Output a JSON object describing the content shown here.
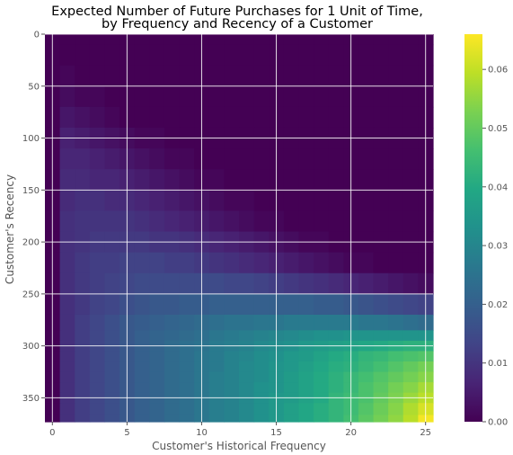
{
  "chart_data": {
    "type": "heatmap",
    "title_lines": [
      "Expected Number of Future Purchases for 1 Unit of Time,",
      "by Frequency and Recency of a Customer"
    ],
    "xlabel": "Customer's Historical Frequency",
    "ylabel": "Customer's Recency",
    "xlim": [
      -0.5,
      25.5
    ],
    "ylim": [
      373,
      0
    ],
    "x_ticks": [
      0,
      5,
      10,
      15,
      20,
      25
    ],
    "y_ticks": [
      0,
      50,
      100,
      150,
      200,
      250,
      300,
      350
    ],
    "x": [
      0,
      1,
      2,
      3,
      4,
      5,
      6,
      7,
      8,
      9,
      10,
      11,
      12,
      13,
      14,
      15,
      16,
      17,
      18,
      19,
      20,
      21,
      22,
      23,
      24,
      25
    ],
    "y": [
      0,
      20,
      40,
      60,
      80,
      100,
      120,
      140,
      160,
      180,
      200,
      220,
      240,
      260,
      280,
      290,
      300,
      310,
      320,
      330,
      340,
      350,
      360,
      373
    ],
    "values": [
      [
        0.0,
        0.0,
        0.0,
        0.0,
        0.0,
        0.0,
        0.0,
        0.0,
        0.0,
        0.0,
        0.0,
        0.0,
        0.0,
        0.0,
        0.0,
        0.0,
        0.0,
        0.0,
        0.0,
        0.0,
        0.0,
        0.0,
        0.0,
        0.0,
        0.0,
        0.0
      ],
      [
        0.0,
        0.0,
        0.0,
        0.0,
        0.0,
        0.0,
        0.0,
        0.0,
        0.0,
        0.0,
        0.0,
        0.0,
        0.0,
        0.0,
        0.0,
        0.0,
        0.0,
        0.0,
        0.0,
        0.0,
        0.0,
        0.0,
        0.0,
        0.0,
        0.0,
        0.0
      ],
      [
        0.0,
        0.001,
        0.0,
        0.0,
        0.0,
        0.0,
        0.0,
        0.0,
        0.0,
        0.0,
        0.0,
        0.0,
        0.0,
        0.0,
        0.0,
        0.0,
        0.0,
        0.0,
        0.0,
        0.0,
        0.0,
        0.0,
        0.0,
        0.0,
        0.0,
        0.0
      ],
      [
        0.0,
        0.002,
        0.001,
        0.001,
        0.0,
        0.0,
        0.0,
        0.0,
        0.0,
        0.0,
        0.0,
        0.0,
        0.0,
        0.0,
        0.0,
        0.0,
        0.0,
        0.0,
        0.0,
        0.0,
        0.0,
        0.0,
        0.0,
        0.0,
        0.0,
        0.0
      ],
      [
        0.0,
        0.004,
        0.003,
        0.002,
        0.001,
        0.0,
        0.0,
        0.0,
        0.0,
        0.0,
        0.0,
        0.0,
        0.0,
        0.0,
        0.0,
        0.0,
        0.0,
        0.0,
        0.0,
        0.0,
        0.0,
        0.0,
        0.0,
        0.0,
        0.0,
        0.0
      ],
      [
        0.0,
        0.006,
        0.005,
        0.004,
        0.003,
        0.002,
        0.001,
        0.001,
        0.0,
        0.0,
        0.0,
        0.0,
        0.0,
        0.0,
        0.0,
        0.0,
        0.0,
        0.0,
        0.0,
        0.0,
        0.0,
        0.0,
        0.0,
        0.0,
        0.0,
        0.0
      ],
      [
        0.0,
        0.007,
        0.007,
        0.006,
        0.005,
        0.004,
        0.003,
        0.002,
        0.001,
        0.001,
        0.0,
        0.0,
        0.0,
        0.0,
        0.0,
        0.0,
        0.0,
        0.0,
        0.0,
        0.0,
        0.0,
        0.0,
        0.0,
        0.0,
        0.0,
        0.0
      ],
      [
        0.0,
        0.008,
        0.008,
        0.007,
        0.007,
        0.006,
        0.005,
        0.004,
        0.003,
        0.002,
        0.001,
        0.001,
        0.0,
        0.0,
        0.0,
        0.0,
        0.0,
        0.0,
        0.0,
        0.0,
        0.0,
        0.0,
        0.0,
        0.0,
        0.0,
        0.0
      ],
      [
        0.0,
        0.008,
        0.009,
        0.009,
        0.008,
        0.008,
        0.007,
        0.006,
        0.005,
        0.004,
        0.003,
        0.002,
        0.001,
        0.001,
        0.0,
        0.0,
        0.0,
        0.0,
        0.0,
        0.0,
        0.0,
        0.0,
        0.0,
        0.0,
        0.0,
        0.0
      ],
      [
        0.0,
        0.009,
        0.01,
        0.01,
        0.01,
        0.01,
        0.009,
        0.008,
        0.007,
        0.006,
        0.005,
        0.004,
        0.003,
        0.002,
        0.001,
        0.001,
        0.0,
        0.0,
        0.0,
        0.0,
        0.0,
        0.0,
        0.0,
        0.0,
        0.0,
        0.0
      ],
      [
        0.0,
        0.009,
        0.01,
        0.011,
        0.011,
        0.011,
        0.011,
        0.01,
        0.01,
        0.009,
        0.008,
        0.007,
        0.006,
        0.005,
        0.004,
        0.003,
        0.002,
        0.001,
        0.001,
        0.0,
        0.0,
        0.0,
        0.0,
        0.0,
        0.0,
        0.0
      ],
      [
        0.0,
        0.009,
        0.011,
        0.012,
        0.012,
        0.013,
        0.013,
        0.013,
        0.012,
        0.012,
        0.011,
        0.01,
        0.009,
        0.008,
        0.007,
        0.006,
        0.005,
        0.004,
        0.003,
        0.002,
        0.001,
        0.001,
        0.0,
        0.0,
        0.0,
        0.0
      ],
      [
        0.0,
        0.009,
        0.011,
        0.012,
        0.013,
        0.014,
        0.015,
        0.015,
        0.015,
        0.015,
        0.015,
        0.015,
        0.014,
        0.014,
        0.013,
        0.012,
        0.011,
        0.01,
        0.009,
        0.008,
        0.007,
        0.006,
        0.005,
        0.004,
        0.003,
        0.002
      ],
      [
        0.0,
        0.009,
        0.011,
        0.013,
        0.014,
        0.016,
        0.017,
        0.018,
        0.018,
        0.019,
        0.019,
        0.02,
        0.02,
        0.02,
        0.02,
        0.02,
        0.02,
        0.02,
        0.019,
        0.019,
        0.018,
        0.017,
        0.016,
        0.015,
        0.014,
        0.013
      ],
      [
        0.0,
        0.009,
        0.012,
        0.014,
        0.016,
        0.018,
        0.019,
        0.02,
        0.021,
        0.022,
        0.023,
        0.024,
        0.025,
        0.025,
        0.026,
        0.026,
        0.027,
        0.027,
        0.027,
        0.027,
        0.027,
        0.026,
        0.026,
        0.025,
        0.024,
        0.023
      ],
      [
        0.0,
        0.009,
        0.012,
        0.014,
        0.016,
        0.018,
        0.02,
        0.021,
        0.022,
        0.023,
        0.024,
        0.026,
        0.027,
        0.028,
        0.029,
        0.03,
        0.031,
        0.032,
        0.033,
        0.033,
        0.034,
        0.034,
        0.034,
        0.034,
        0.034,
        0.034
      ],
      [
        0.0,
        0.009,
        0.012,
        0.014,
        0.016,
        0.018,
        0.02,
        0.021,
        0.023,
        0.024,
        0.025,
        0.027,
        0.028,
        0.029,
        0.031,
        0.032,
        0.033,
        0.035,
        0.036,
        0.037,
        0.038,
        0.039,
        0.04,
        0.041,
        0.042,
        0.042
      ],
      [
        0.0,
        0.009,
        0.012,
        0.014,
        0.016,
        0.018,
        0.02,
        0.021,
        0.023,
        0.024,
        0.026,
        0.027,
        0.029,
        0.03,
        0.032,
        0.033,
        0.035,
        0.036,
        0.038,
        0.04,
        0.041,
        0.043,
        0.044,
        0.046,
        0.047,
        0.048
      ],
      [
        0.0,
        0.009,
        0.012,
        0.014,
        0.016,
        0.018,
        0.02,
        0.021,
        0.023,
        0.024,
        0.026,
        0.027,
        0.029,
        0.031,
        0.032,
        0.034,
        0.035,
        0.037,
        0.039,
        0.041,
        0.042,
        0.044,
        0.046,
        0.048,
        0.05,
        0.052
      ],
      [
        0.0,
        0.009,
        0.012,
        0.014,
        0.016,
        0.018,
        0.02,
        0.021,
        0.023,
        0.024,
        0.026,
        0.028,
        0.029,
        0.031,
        0.032,
        0.034,
        0.036,
        0.038,
        0.04,
        0.042,
        0.044,
        0.046,
        0.048,
        0.05,
        0.052,
        0.054
      ],
      [
        0.0,
        0.009,
        0.012,
        0.014,
        0.016,
        0.018,
        0.02,
        0.021,
        0.023,
        0.024,
        0.026,
        0.028,
        0.029,
        0.031,
        0.033,
        0.034,
        0.036,
        0.038,
        0.04,
        0.042,
        0.044,
        0.047,
        0.049,
        0.052,
        0.054,
        0.057
      ],
      [
        0.0,
        0.009,
        0.012,
        0.014,
        0.016,
        0.018,
        0.02,
        0.021,
        0.023,
        0.024,
        0.026,
        0.028,
        0.029,
        0.031,
        0.033,
        0.035,
        0.036,
        0.038,
        0.04,
        0.043,
        0.045,
        0.047,
        0.05,
        0.053,
        0.056,
        0.059
      ],
      [
        0.0,
        0.009,
        0.012,
        0.014,
        0.016,
        0.018,
        0.02,
        0.021,
        0.023,
        0.024,
        0.026,
        0.028,
        0.029,
        0.031,
        0.033,
        0.035,
        0.037,
        0.039,
        0.041,
        0.043,
        0.045,
        0.048,
        0.051,
        0.054,
        0.058,
        0.062
      ],
      [
        0.0,
        0.009,
        0.012,
        0.014,
        0.016,
        0.018,
        0.02,
        0.021,
        0.023,
        0.024,
        0.026,
        0.028,
        0.029,
        0.031,
        0.033,
        0.035,
        0.037,
        0.039,
        0.041,
        0.043,
        0.046,
        0.049,
        0.052,
        0.055,
        0.059,
        0.065
      ]
    ],
    "colorbar": {
      "colormap": "viridis",
      "vmin": 0.0,
      "vmax": 0.066,
      "ticks": [
        "0.00",
        "0.01",
        "0.02",
        "0.03",
        "0.04",
        "0.05",
        "0.06"
      ]
    },
    "grid": true,
    "grid_color": "#ffffff"
  }
}
